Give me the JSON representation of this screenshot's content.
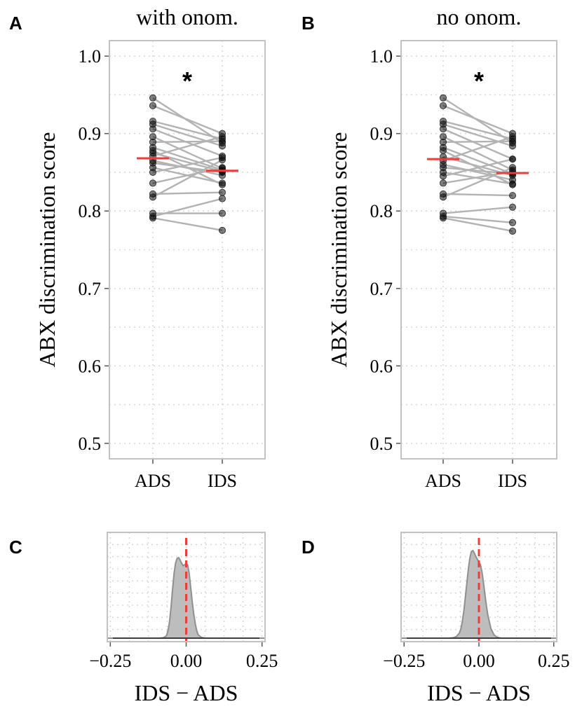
{
  "chart_data": [
    {
      "panel": "A",
      "type": "scatter",
      "title": "with onom.",
      "ylabel": "ABX discrimination score",
      "xlabel": "",
      "categories": [
        "ADS",
        "IDS"
      ],
      "ylim": [
        0.48,
        1.02
      ],
      "yticks": [
        0.5,
        0.6,
        0.7,
        0.8,
        0.9,
        1.0
      ],
      "ytick_labels": [
        "0.5",
        "0.6",
        "0.7",
        "0.8",
        "0.9",
        "1.0"
      ],
      "annotation": "*",
      "grid": true,
      "pairs": [
        [
          0.946,
          0.888
        ],
        [
          0.936,
          0.9
        ],
        [
          0.916,
          0.893
        ],
        [
          0.912,
          0.884
        ],
        [
          0.906,
          0.871
        ],
        [
          0.896,
          0.855
        ],
        [
          0.889,
          0.89
        ],
        [
          0.882,
          0.853
        ],
        [
          0.878,
          0.834
        ],
        [
          0.875,
          0.851
        ],
        [
          0.871,
          0.896
        ],
        [
          0.865,
          0.846
        ],
        [
          0.862,
          0.85
        ],
        [
          0.856,
          0.836
        ],
        [
          0.85,
          0.869
        ],
        [
          0.836,
          0.856
        ],
        [
          0.822,
          0.824
        ],
        [
          0.818,
          0.866
        ],
        [
          0.797,
          0.797
        ],
        [
          0.793,
          0.816
        ],
        [
          0.791,
          0.775
        ]
      ],
      "means": {
        "ADS": 0.868,
        "IDS": 0.852
      }
    },
    {
      "panel": "B",
      "type": "scatter",
      "title": "no onom.",
      "ylabel": "ABX discrimination score",
      "xlabel": "",
      "categories": [
        "ADS",
        "IDS"
      ],
      "ylim": [
        0.48,
        1.02
      ],
      "yticks": [
        0.5,
        0.6,
        0.7,
        0.8,
        0.9,
        1.0
      ],
      "ytick_labels": [
        "0.5",
        "0.6",
        "0.7",
        "0.8",
        "0.9",
        "1.0"
      ],
      "annotation": "*",
      "grid": true,
      "pairs": [
        [
          0.946,
          0.888
        ],
        [
          0.936,
          0.9
        ],
        [
          0.916,
          0.893
        ],
        [
          0.912,
          0.884
        ],
        [
          0.906,
          0.867
        ],
        [
          0.896,
          0.853
        ],
        [
          0.889,
          0.89
        ],
        [
          0.882,
          0.848
        ],
        [
          0.878,
          0.834
        ],
        [
          0.87,
          0.846
        ],
        [
          0.865,
          0.896
        ],
        [
          0.86,
          0.84
        ],
        [
          0.856,
          0.848
        ],
        [
          0.85,
          0.835
        ],
        [
          0.845,
          0.867
        ],
        [
          0.836,
          0.851
        ],
        [
          0.822,
          0.82
        ],
        [
          0.818,
          0.856
        ],
        [
          0.797,
          0.805
        ],
        [
          0.793,
          0.785
        ],
        [
          0.791,
          0.774
        ]
      ],
      "means": {
        "ADS": 0.867,
        "IDS": 0.849
      }
    },
    {
      "panel": "C",
      "type": "area",
      "title": "",
      "xlabel": "IDS − ADS",
      "ylabel": "",
      "xlim": [
        -0.26,
        0.26
      ],
      "xticks": [
        -0.25,
        0.0,
        0.25
      ],
      "xtick_labels": [
        "−0.25",
        "0.00",
        "0.25"
      ],
      "reference_line": 0.0,
      "grid": true,
      "density": {
        "x": [
          -0.26,
          -0.09,
          -0.075,
          -0.065,
          -0.06,
          -0.055,
          -0.05,
          -0.045,
          -0.04,
          -0.035,
          -0.03,
          -0.025,
          -0.02,
          -0.015,
          -0.01,
          -0.005,
          0.0,
          0.005,
          0.01,
          0.015,
          0.02,
          0.025,
          0.03,
          0.035,
          0.04,
          0.05,
          0.06,
          0.075,
          0.26
        ],
        "y": [
          0,
          0,
          0.005,
          0.03,
          0.09,
          0.2,
          0.38,
          0.6,
          0.8,
          0.93,
          0.99,
          1.0,
          0.97,
          0.93,
          0.9,
          0.91,
          0.93,
          0.91,
          0.8,
          0.63,
          0.45,
          0.3,
          0.18,
          0.09,
          0.04,
          0.01,
          0.002,
          0,
          0
        ]
      }
    },
    {
      "panel": "D",
      "type": "area",
      "title": "",
      "xlabel": "IDS − ADS",
      "ylabel": "",
      "xlim": [
        -0.26,
        0.26
      ],
      "xticks": [
        -0.25,
        0.0,
        0.25
      ],
      "xtick_labels": [
        "−0.25",
        "0.00",
        "0.25"
      ],
      "reference_line": 0.0,
      "grid": true,
      "density": {
        "x": [
          -0.26,
          -0.1,
          -0.085,
          -0.075,
          -0.065,
          -0.06,
          -0.055,
          -0.05,
          -0.045,
          -0.04,
          -0.035,
          -0.03,
          -0.025,
          -0.02,
          -0.015,
          -0.01,
          -0.005,
          0.0,
          0.005,
          0.01,
          0.015,
          0.02,
          0.025,
          0.03,
          0.04,
          0.05,
          0.06,
          0.075,
          0.26
        ],
        "y": [
          0,
          0,
          0.005,
          0.02,
          0.06,
          0.11,
          0.2,
          0.32,
          0.48,
          0.64,
          0.8,
          0.92,
          0.99,
          1.0,
          0.97,
          0.93,
          0.9,
          0.87,
          0.84,
          0.76,
          0.64,
          0.5,
          0.37,
          0.26,
          0.11,
          0.04,
          0.01,
          0,
          0
        ]
      }
    }
  ]
}
